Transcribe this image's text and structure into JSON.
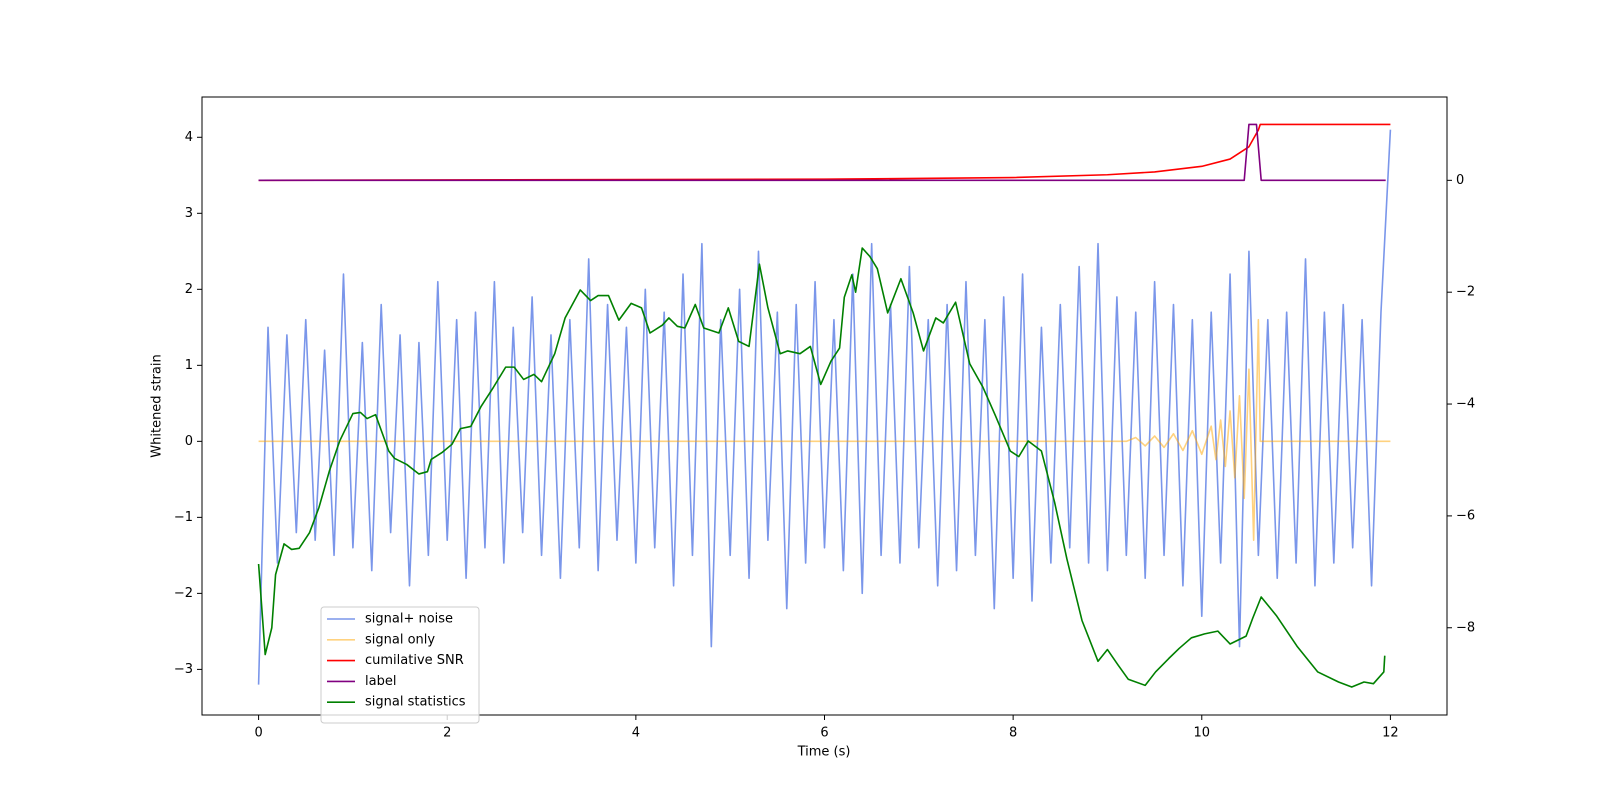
{
  "chart_data": {
    "type": "line",
    "xlabel": "Time (s)",
    "ylabel": "Whitened strain",
    "xlim": [
      -0.6,
      12.6
    ],
    "xticks": [
      0,
      2,
      4,
      6,
      8,
      10,
      12
    ],
    "ylim": [
      -3.6,
      4.53
    ],
    "yticks": [
      {
        "value": -3,
        "label": "−3"
      },
      {
        "value": -2,
        "label": "−2"
      },
      {
        "value": -1,
        "label": "−1"
      },
      0,
      1,
      2,
      3,
      4
    ],
    "y2lim": [
      -9.56,
      1.49
    ],
    "y2ticks": [
      {
        "value": -8,
        "label": "−8"
      },
      {
        "value": -6,
        "label": "−6"
      },
      {
        "value": -4,
        "label": "−4"
      },
      {
        "value": -2,
        "label": "−2"
      },
      0
    ],
    "legend": "lower left",
    "grid": false,
    "series": [
      {
        "name": "signal+ noise",
        "color": "royalblue",
        "alpha": 0.7,
        "x": [
          0,
          0.1,
          0.2,
          0.3,
          0.4,
          0.5,
          0.6,
          0.7,
          0.8,
          0.9,
          1.0,
          1.1,
          1.2,
          1.3,
          1.4,
          1.5,
          1.6,
          1.7,
          1.8,
          1.9,
          2.0,
          2.1,
          2.2,
          2.3,
          2.4,
          2.5,
          2.6,
          2.7,
          2.8,
          2.9,
          3.0,
          3.1,
          3.2,
          3.3,
          3.4,
          3.5,
          3.6,
          3.7,
          3.8,
          3.9,
          4.0,
          4.1,
          4.2,
          4.3,
          4.4,
          4.5,
          4.6,
          4.7,
          4.8,
          4.9,
          5.0,
          5.1,
          5.2,
          5.3,
          5.4,
          5.5,
          5.6,
          5.7,
          5.8,
          5.9,
          6.0,
          6.1,
          6.2,
          6.3,
          6.4,
          6.5,
          6.6,
          6.7,
          6.8,
          6.9,
          7.0,
          7.1,
          7.2,
          7.3,
          7.4,
          7.5,
          7.6,
          7.7,
          7.8,
          7.9,
          8.0,
          8.1,
          8.2,
          8.3,
          8.4,
          8.5,
          8.6,
          8.7,
          8.8,
          8.9,
          9.0,
          9.1,
          9.2,
          9.3,
          9.4,
          9.5,
          9.6,
          9.7,
          9.8,
          9.9,
          10.0,
          10.1,
          10.2,
          10.3,
          10.4,
          10.5,
          10.6,
          10.7,
          10.8,
          10.9,
          11.0,
          11.1,
          11.2,
          11.3,
          11.4,
          11.5,
          11.6,
          11.7,
          11.8,
          11.9,
          12.0
        ],
        "values": [
          -3.2,
          1.5,
          -1.6,
          1.4,
          -1.2,
          1.6,
          -1.3,
          1.2,
          -1.5,
          2.2,
          -1.4,
          1.3,
          -1.7,
          1.8,
          -1.2,
          1.4,
          -1.9,
          1.3,
          -1.5,
          2.1,
          -1.3,
          1.6,
          -1.8,
          1.7,
          -1.4,
          2.1,
          -1.6,
          1.5,
          -1.2,
          1.9,
          -1.5,
          1.4,
          -1.8,
          1.6,
          -1.4,
          2.4,
          -1.7,
          1.8,
          -1.3,
          1.5,
          -1.6,
          2.0,
          -1.4,
          1.7,
          -1.9,
          2.2,
          -1.5,
          2.6,
          -2.7,
          1.6,
          -1.5,
          2.0,
          -1.8,
          2.5,
          -1.3,
          1.7,
          -2.2,
          1.8,
          -1.6,
          2.1,
          -1.4,
          1.6,
          -1.7,
          2.2,
          -2.0,
          2.6,
          -1.5,
          1.8,
          -1.6,
          2.3,
          -1.4,
          1.6,
          -1.9,
          1.8,
          -1.7,
          2.1,
          -1.5,
          1.6,
          -2.2,
          1.9,
          -1.8,
          2.2,
          -2.1,
          1.5,
          -1.6,
          1.8,
          -1.4,
          2.3,
          -1.6,
          2.6,
          -1.7,
          1.9,
          -1.5,
          1.7,
          -1.8,
          2.1,
          -1.5,
          1.8,
          -1.9,
          1.6,
          -2.3,
          1.7,
          -1.6,
          2.2,
          -2.7,
          2.5,
          -1.5,
          1.6,
          -1.8,
          1.7,
          -1.6,
          2.4,
          -1.9,
          1.7,
          -1.6,
          1.8,
          -1.4,
          1.6,
          -1.9,
          1.7,
          4.1
        ]
      },
      {
        "name": "signal only",
        "color": "orange",
        "alpha": 0.5,
        "x": [
          0,
          9.2,
          9.3,
          9.4,
          9.5,
          9.6,
          9.7,
          9.8,
          9.9,
          10.0,
          10.1,
          10.15,
          10.2,
          10.25,
          10.3,
          10.35,
          10.4,
          10.45,
          10.5,
          10.55,
          10.6,
          10.62,
          12.0
        ],
        "values": [
          0,
          0,
          0.05,
          -0.06,
          0.07,
          -0.08,
          0.1,
          -0.12,
          0.14,
          -0.17,
          0.2,
          -0.24,
          0.28,
          -0.33,
          0.4,
          -0.48,
          0.6,
          -0.75,
          0.95,
          -1.3,
          1.6,
          0,
          0
        ]
      },
      {
        "name": "cumilative SNR",
        "color": "red",
        "axis": "y2",
        "x": [
          0,
          6,
          8,
          9,
          9.5,
          10,
          10.3,
          10.5,
          10.6,
          10.62,
          12
        ],
        "values": [
          0,
          0.02,
          0.05,
          0.1,
          0.15,
          0.25,
          0.38,
          0.6,
          0.9,
          1.0,
          1.0
        ]
      },
      {
        "name": "label",
        "color": "purple",
        "axis": "y2",
        "x": [
          0,
          10.45,
          10.5,
          10.58,
          10.63,
          11.95
        ],
        "values": [
          0,
          0,
          1,
          1,
          0,
          0
        ]
      },
      {
        "name": "signal statistics",
        "color": "green",
        "axis": "y2",
        "x": [
          0,
          0.07,
          0.14,
          0.18,
          0.27,
          0.35,
          0.43,
          0.54,
          0.64,
          0.75,
          0.86,
          1.0,
          1.08,
          1.15,
          1.24,
          1.38,
          1.44,
          1.57,
          1.7,
          1.79,
          1.83,
          1.95,
          2.05,
          2.14,
          2.25,
          2.36,
          2.49,
          2.62,
          2.71,
          2.81,
          2.92,
          3.0,
          3.14,
          3.25,
          3.41,
          3.52,
          3.6,
          3.71,
          3.82,
          3.95,
          4.06,
          4.15,
          4.28,
          4.35,
          4.44,
          4.52,
          4.63,
          4.72,
          4.88,
          4.98,
          5.09,
          5.2,
          5.31,
          5.4,
          5.53,
          5.61,
          5.74,
          5.85,
          5.96,
          6.07,
          6.16,
          6.21,
          6.29,
          6.33,
          6.4,
          6.48,
          6.56,
          6.67,
          6.81,
          6.94,
          7.05,
          7.18,
          7.26,
          7.39,
          7.54,
          7.68,
          7.81,
          7.97,
          8.06,
          8.16,
          8.3,
          8.44,
          8.57,
          8.73,
          8.9,
          9.0,
          9.11,
          9.22,
          9.4,
          9.51,
          9.65,
          9.76,
          9.89,
          10.03,
          10.17,
          10.3,
          10.47,
          10.54,
          10.63,
          10.79,
          11.01,
          11.23,
          11.45,
          11.59,
          11.72,
          11.82,
          11.93,
          11.94
        ],
        "values": [
          -6.86,
          -8.48,
          -8.0,
          -7.05,
          -6.5,
          -6.6,
          -6.58,
          -6.3,
          -5.85,
          -5.2,
          -4.66,
          -4.17,
          -4.15,
          -4.26,
          -4.19,
          -4.84,
          -4.97,
          -5.08,
          -5.25,
          -5.21,
          -4.99,
          -4.86,
          -4.72,
          -4.44,
          -4.4,
          -4.04,
          -3.7,
          -3.34,
          -3.34,
          -3.56,
          -3.47,
          -3.6,
          -3.1,
          -2.46,
          -1.96,
          -2.15,
          -2.06,
          -2.06,
          -2.5,
          -2.2,
          -2.28,
          -2.73,
          -2.59,
          -2.46,
          -2.61,
          -2.64,
          -2.22,
          -2.64,
          -2.73,
          -2.28,
          -2.88,
          -2.97,
          -1.5,
          -2.28,
          -3.1,
          -3.05,
          -3.1,
          -2.97,
          -3.65,
          -3.23,
          -3.0,
          -2.09,
          -1.69,
          -2.0,
          -1.21,
          -1.36,
          -1.58,
          -2.37,
          -1.76,
          -2.37,
          -3.05,
          -2.46,
          -2.55,
          -2.18,
          -3.28,
          -3.7,
          -4.2,
          -4.84,
          -4.94,
          -4.66,
          -4.84,
          -5.76,
          -6.77,
          -7.87,
          -8.6,
          -8.39,
          -8.66,
          -8.92,
          -9.03,
          -8.79,
          -8.55,
          -8.37,
          -8.18,
          -8.11,
          -8.06,
          -8.29,
          -8.15,
          -7.83,
          -7.45,
          -7.78,
          -8.33,
          -8.79,
          -8.97,
          -9.06,
          -8.97,
          -9.0,
          -8.79,
          -8.5
        ]
      }
    ]
  }
}
